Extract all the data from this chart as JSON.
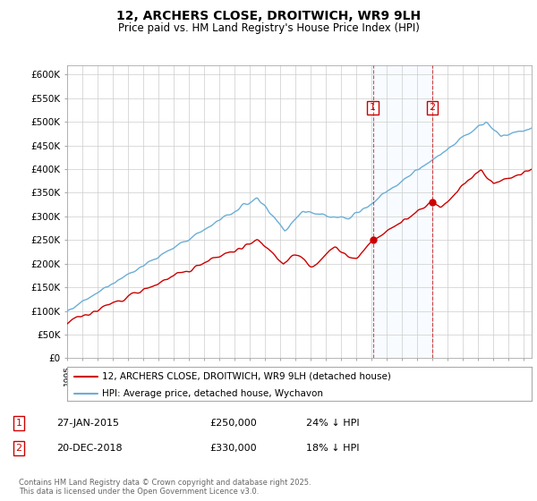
{
  "title": "12, ARCHERS CLOSE, DROITWICH, WR9 9LH",
  "subtitle": "Price paid vs. HM Land Registry's House Price Index (HPI)",
  "ylabel_ticks": [
    "£0",
    "£50K",
    "£100K",
    "£150K",
    "£200K",
    "£250K",
    "£300K",
    "£350K",
    "£400K",
    "£450K",
    "£500K",
    "£550K",
    "£600K"
  ],
  "ylim": [
    0,
    620000
  ],
  "xlim_start": 1995.0,
  "xlim_end": 2025.5,
  "legend_label_red": "12, ARCHERS CLOSE, DROITWICH, WR9 9LH (detached house)",
  "legend_label_blue": "HPI: Average price, detached house, Wychavon",
  "red_color": "#cc0000",
  "blue_color": "#6baed6",
  "blue_fill_color": "#ddeeff",
  "annotation1_date": "27-JAN-2015",
  "annotation1_price": "£250,000",
  "annotation1_hpi": "24% ↓ HPI",
  "annotation2_date": "20-DEC-2018",
  "annotation2_price": "£330,000",
  "annotation2_hpi": "18% ↓ HPI",
  "vline1_x": 2015.07,
  "vline2_x": 2018.97,
  "marker1_y": 250000,
  "marker2_y": 330000,
  "footnote": "Contains HM Land Registry data © Crown copyright and database right 2025.\nThis data is licensed under the Open Government Licence v3.0.",
  "background_color": "#ffffff",
  "grid_color": "#cccccc"
}
